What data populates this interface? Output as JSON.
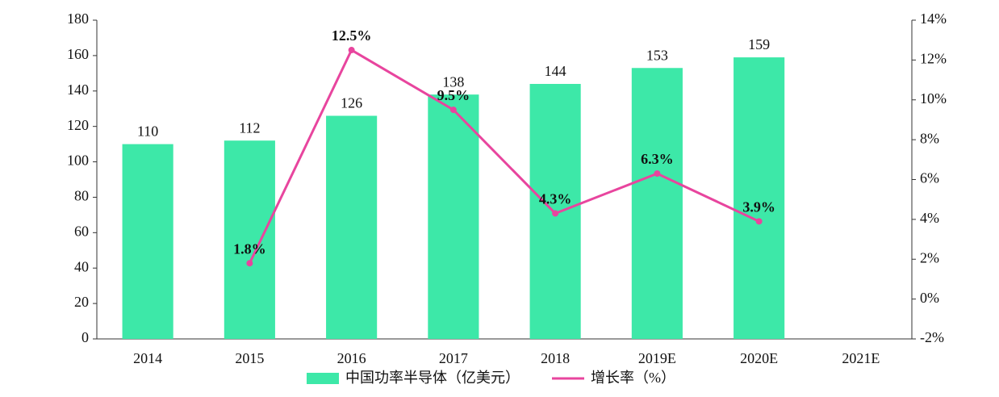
{
  "chart_data": {
    "type": "bar-line",
    "categories": [
      "2014",
      "2015",
      "2016",
      "2017",
      "2018",
      "2019E",
      "2020E",
      "2021E"
    ],
    "series": [
      {
        "name": "中国功率半导体（亿美元）",
        "type": "bar",
        "color": "#3de8a8",
        "values": [
          110,
          112,
          126,
          138,
          144,
          153,
          159,
          null
        ]
      },
      {
        "name": "增长率（%）",
        "type": "line",
        "axis": "y2",
        "color": "#e8459e",
        "values": [
          null,
          1.8,
          12.5,
          9.5,
          4.3,
          6.3,
          3.9,
          null
        ],
        "value_labels": [
          null,
          "1.8%",
          "12.5%",
          "9.5%",
          "4.3%",
          "6.3%",
          "3.9%",
          null
        ]
      }
    ],
    "ylim": [
      0,
      180
    ],
    "yticks": [
      0,
      20,
      40,
      60,
      80,
      100,
      120,
      140,
      160,
      180
    ],
    "y2lim": [
      -2,
      14
    ],
    "y2ticks": [
      {
        "value": -2,
        "label": "-2%"
      },
      {
        "value": 0,
        "label": "0%"
      },
      {
        "value": 2,
        "label": "2%"
      },
      {
        "value": 4,
        "label": "4%"
      },
      {
        "value": 6,
        "label": "6%"
      },
      {
        "value": 8,
        "label": "8%"
      },
      {
        "value": 10,
        "label": "10%"
      },
      {
        "value": 12,
        "label": "12%"
      },
      {
        "value": 14,
        "label": "14%"
      }
    ]
  }
}
